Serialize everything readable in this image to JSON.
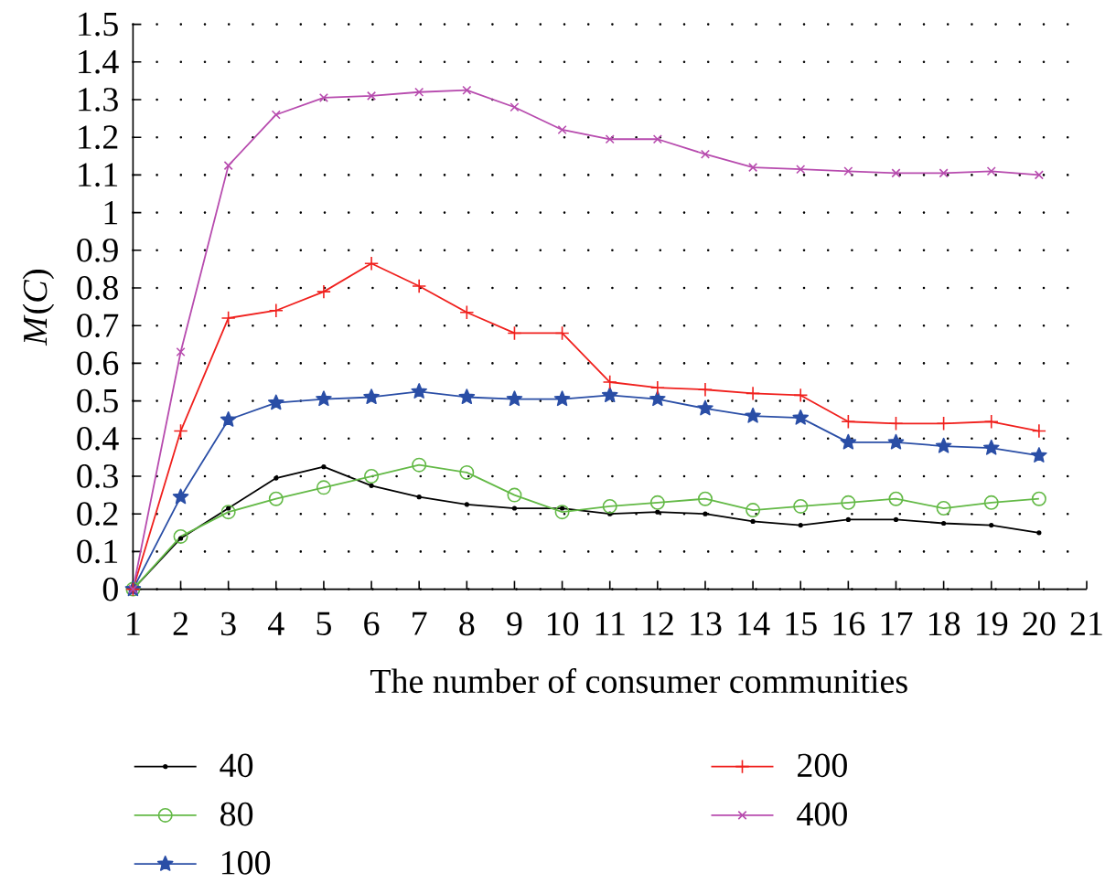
{
  "chart_data": {
    "type": "line",
    "xlabel": "The number of consumer communities",
    "ylabel": "*M*(*C*)",
    "x": [
      1,
      2,
      3,
      4,
      5,
      6,
      7,
      8,
      9,
      10,
      11,
      12,
      13,
      14,
      15,
      16,
      17,
      18,
      19,
      20
    ],
    "xlim": [
      1,
      21
    ],
    "xticks": [
      1,
      2,
      3,
      4,
      5,
      6,
      7,
      8,
      9,
      10,
      11,
      12,
      13,
      14,
      15,
      16,
      17,
      18,
      19,
      20,
      21
    ],
    "ylim": [
      0,
      1.5
    ],
    "yticks": [
      0,
      0.1,
      0.2,
      0.3,
      0.4,
      0.5,
      0.6,
      0.7,
      0.8,
      0.9,
      1,
      1.1,
      1.2,
      1.3,
      1.4,
      1.5
    ],
    "grid": "y",
    "legend": "bottom",
    "series": [
      {
        "name": "40",
        "color": "#000000",
        "marker": "point",
        "values": [
          0,
          0.135,
          0.215,
          0.295,
          0.325,
          0.275,
          0.245,
          0.225,
          0.215,
          0.215,
          0.2,
          0.205,
          0.2,
          0.18,
          0.17,
          0.185,
          0.185,
          0.175,
          0.17,
          0.15
        ]
      },
      {
        "name": "80",
        "color": "#63b946",
        "marker": "circle",
        "values": [
          0,
          0.14,
          0.205,
          0.24,
          0.27,
          0.3,
          0.33,
          0.31,
          0.25,
          0.205,
          0.22,
          0.23,
          0.24,
          0.21,
          0.22,
          0.23,
          0.24,
          0.215,
          0.23,
          0.24
        ]
      },
      {
        "name": "100",
        "color": "#2a4ea6",
        "marker": "star",
        "values": [
          0,
          0.245,
          0.45,
          0.495,
          0.505,
          0.51,
          0.525,
          0.51,
          0.505,
          0.505,
          0.515,
          0.505,
          0.48,
          0.46,
          0.455,
          0.39,
          0.39,
          0.38,
          0.375,
          0.355
        ]
      },
      {
        "name": "200",
        "color": "#f0201d",
        "marker": "cross",
        "values": [
          0,
          0.42,
          0.72,
          0.74,
          0.79,
          0.865,
          0.805,
          0.735,
          0.68,
          0.68,
          0.55,
          0.535,
          0.53,
          0.52,
          0.515,
          0.445,
          0.44,
          0.44,
          0.445,
          0.42
        ]
      },
      {
        "name": "400",
        "color": "#b74bae",
        "marker": "x",
        "values": [
          0,
          0.63,
          1.125,
          1.26,
          1.305,
          1.31,
          1.32,
          1.325,
          1.28,
          1.22,
          1.195,
          1.195,
          1.155,
          1.12,
          1.115,
          1.11,
          1.105,
          1.105,
          1.11,
          1.1
        ]
      }
    ]
  }
}
